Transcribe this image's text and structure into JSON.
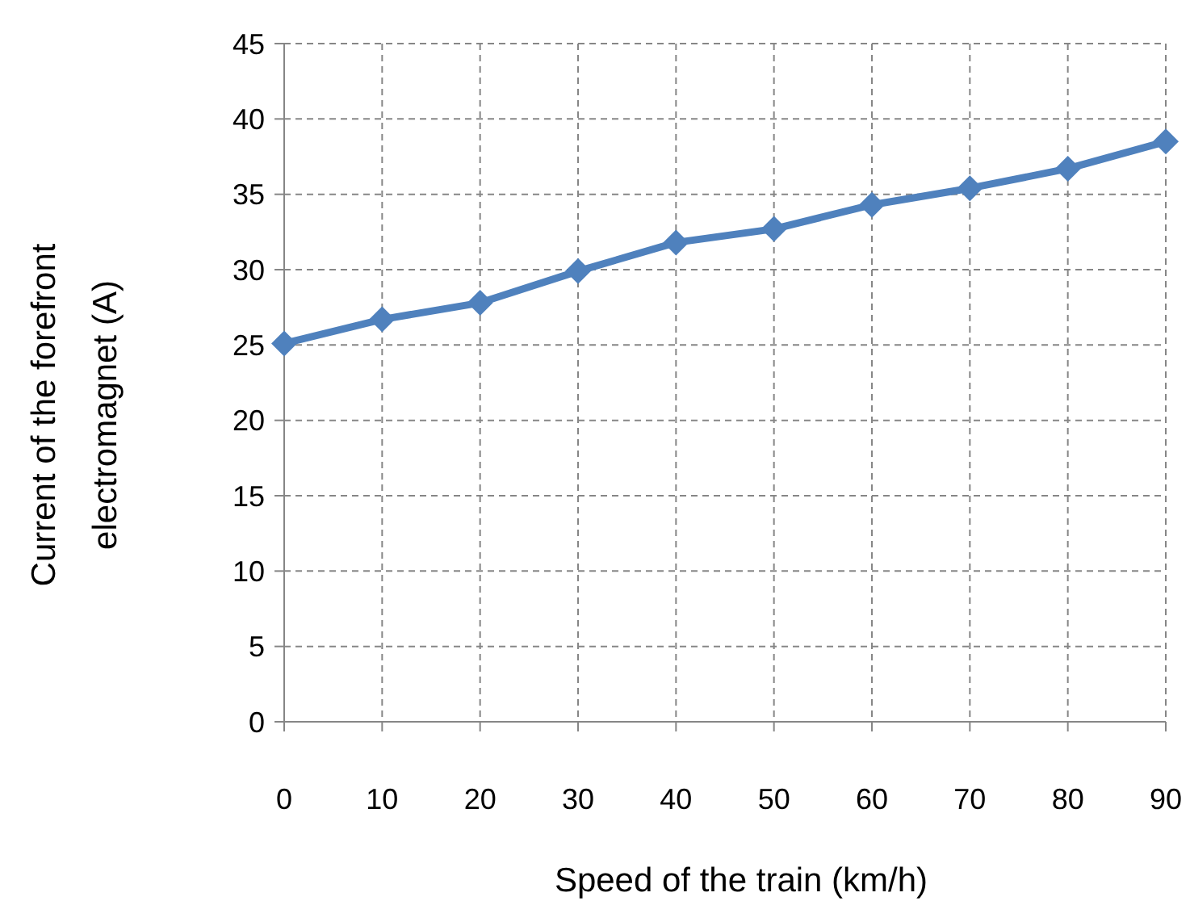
{
  "chart_data": {
    "type": "line",
    "xlabel": "Speed of the train (km/h)",
    "ylabel": "Current of the forefront electromagnet (A)",
    "x": [
      0,
      10,
      20,
      30,
      40,
      50,
      60,
      70,
      80,
      90
    ],
    "series": [
      {
        "color": "#4f81bd",
        "values": [
          25.1,
          26.7,
          27.8,
          29.9,
          31.8,
          32.7,
          34.3,
          35.4,
          36.7,
          38.5
        ]
      }
    ],
    "xlim": [
      0,
      90
    ],
    "xticks": [
      0,
      10,
      20,
      30,
      40,
      50,
      60,
      70,
      80,
      90
    ],
    "ylim": [
      0,
      45
    ],
    "yticks": [
      0,
      5,
      10,
      15,
      20,
      25,
      30,
      35,
      40,
      45
    ],
    "grid": true,
    "marker": "diamond",
    "line_style": "solid"
  }
}
